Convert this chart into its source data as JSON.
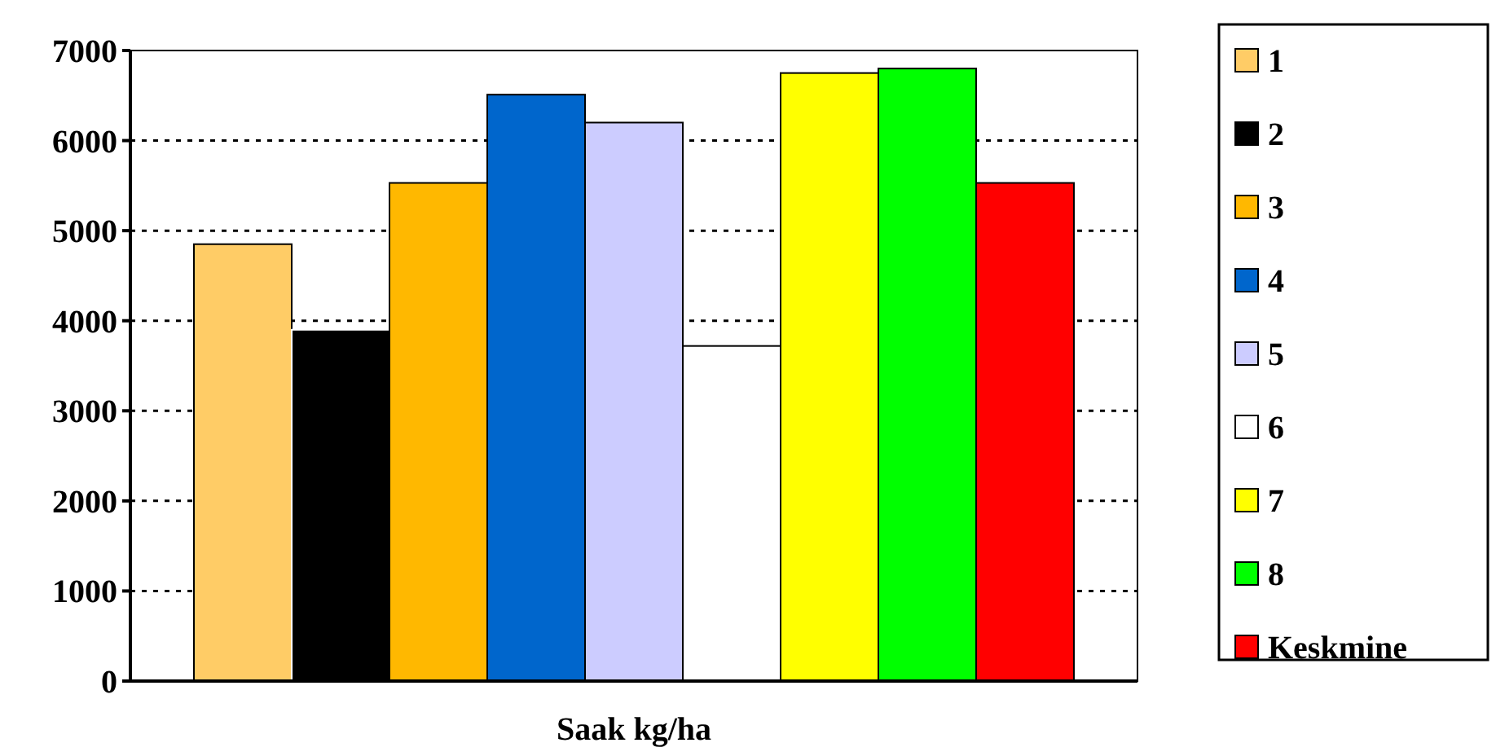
{
  "chart_data": {
    "type": "bar",
    "categories": [
      "Saak kg/ha"
    ],
    "series": [
      {
        "name": "1",
        "color": "#ffcc66",
        "values": [
          4850
        ]
      },
      {
        "name": "2",
        "color": "#000000",
        "values": [
          3900
        ]
      },
      {
        "name": "3",
        "color": "#ffb800",
        "values": [
          5530
        ]
      },
      {
        "name": "4",
        "color": "#0066cc",
        "values": [
          6510
        ]
      },
      {
        "name": "5",
        "color": "#ccccff",
        "values": [
          6200
        ]
      },
      {
        "name": "6",
        "color": "#ffffff",
        "values": [
          3720
        ]
      },
      {
        "name": "7",
        "color": "#ffff00",
        "values": [
          6750
        ]
      },
      {
        "name": "8",
        "color": "#00ff00",
        "values": [
          6800
        ]
      },
      {
        "name": "Keskmine",
        "color": "#ff0000",
        "values": [
          5530
        ]
      }
    ],
    "ylim": [
      0,
      7000
    ],
    "yticks": [
      0,
      1000,
      2000,
      3000,
      4000,
      5000,
      6000,
      7000
    ],
    "grid": "y",
    "legend": "right"
  }
}
